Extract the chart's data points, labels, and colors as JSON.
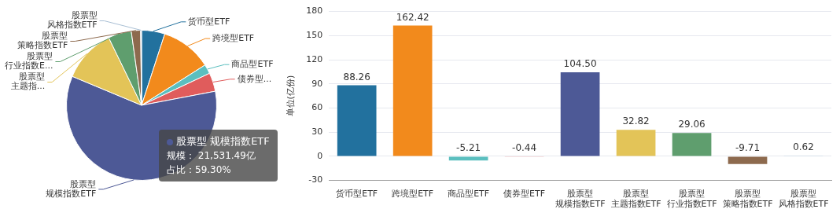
{
  "chart_data": [
    {
      "type": "pie",
      "categories": [
        "货币型ETF",
        "跨境型ETF",
        "商品型ETF",
        "债券型...",
        "股票型规模指数ETF",
        "股票型主题指...",
        "股票型行业指数E...",
        "股票型策略指数ETF",
        "股票型风格指数ETF"
      ],
      "values": [
        5,
        11,
        2,
        4,
        59.3,
        11.5,
        5,
        2,
        0.2
      ],
      "colors": [
        "#22719e",
        "#f28a1c",
        "#5bbfbf",
        "#e05c5c",
        "#4d5996",
        "#e3c458",
        "#5f9e6e",
        "#8d6a4e",
        "#a9bfd4"
      ],
      "annotations": [
        "股票型 规模指数ETF",
        "规模：  21,531.49亿",
        "占比：59.30%"
      ]
    },
    {
      "type": "bar",
      "categories": [
        "货币型ETF",
        "跨境型ETF",
        "商品型ETF",
        "债券型ETF",
        "股票型规模指数ETF",
        "股票型主题指数ETF",
        "股票型行业指数ETF",
        "股票型策略指数ETF",
        "股票型风格指数ETF"
      ],
      "values": [
        88.26,
        162.42,
        -5.21,
        -0.44,
        104.5,
        32.82,
        29.06,
        -9.71,
        0.62
      ],
      "value_labels": [
        "88.26",
        "162.42",
        "-5.21",
        "-0.44",
        "104.50",
        "32.82",
        "29.06",
        "-9.71",
        "0.62"
      ],
      "colors": [
        "#22719e",
        "#f28a1c",
        "#5bbfbf",
        "#e88a8a",
        "#4d5996",
        "#e3c458",
        "#5f9e6e",
        "#8d6a4e",
        "#a9bfd4"
      ],
      "ylabel": "单位(亿份)",
      "ylim": [
        -30,
        180
      ],
      "yticks": [
        -30,
        0,
        30,
        60,
        90,
        120,
        150,
        180
      ],
      "grid": "y"
    }
  ]
}
